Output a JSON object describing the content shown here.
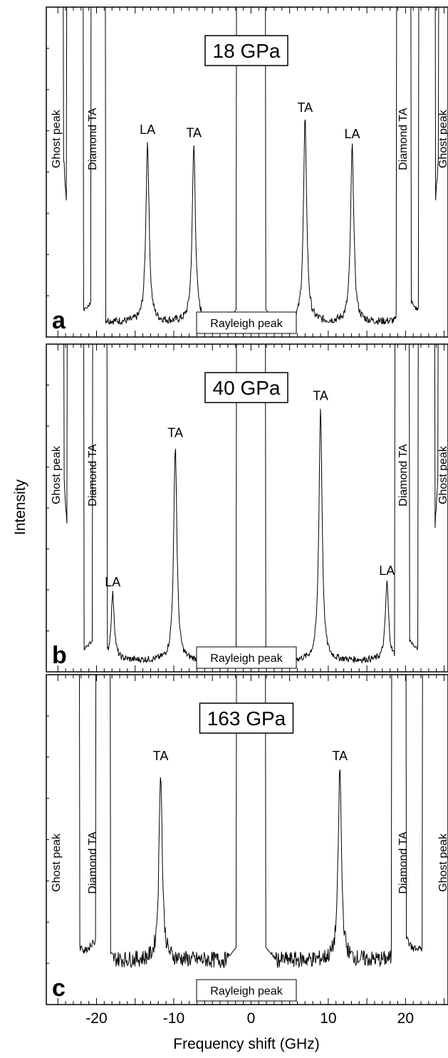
{
  "chart_data": {
    "type": "line",
    "title": "",
    "xlabel": "Frequency shift (GHz)",
    "ylabel": "Intensity",
    "xlim": [
      -26.5,
      25.5
    ],
    "xticks": [
      -20,
      -10,
      0,
      10,
      20
    ],
    "xtick_labels": [
      "-20",
      "-10",
      "0",
      "10",
      "20"
    ],
    "grid": false,
    "panels": [
      {
        "letter": "a",
        "pressure": "18 GPa",
        "rayleigh_label": "Rayleigh peak",
        "ghost_label": "Ghost peak",
        "diamond_label": "Diamond TA",
        "peak_labels": [
          {
            "text": "LA",
            "x": -13.4
          },
          {
            "text": "TA",
            "x": -7.4
          },
          {
            "text": "TA",
            "x": 7.0
          },
          {
            "text": "LA",
            "x": 13.1
          }
        ],
        "peaks": [
          {
            "x": -13.4,
            "h": 0.545
          },
          {
            "x": -7.4,
            "h": 0.535
          },
          {
            "x": 7.0,
            "h": 0.612
          },
          {
            "x": 13.1,
            "h": 0.532
          }
        ],
        "baseline": 0.045,
        "noise": 0.012,
        "diamond_x": 20.4,
        "ghost_x": 23.1
      },
      {
        "letter": "b",
        "pressure": "40 GPa",
        "rayleigh_label": "Rayleigh peak",
        "ghost_label": "Ghost peak",
        "diamond_label": "Diamond TA",
        "peak_labels": [
          {
            "text": "LA",
            "x": -17.9
          },
          {
            "text": "TA",
            "x": -9.8
          },
          {
            "text": "TA",
            "x": 9.0
          },
          {
            "text": "LA",
            "x": 17.6
          }
        ],
        "peaks": [
          {
            "x": -17.9,
            "h": 0.2
          },
          {
            "x": -9.8,
            "h": 0.655
          },
          {
            "x": 9.0,
            "h": 0.768
          },
          {
            "x": 17.6,
            "h": 0.235
          }
        ],
        "baseline": 0.035,
        "noise": 0.01,
        "diamond_x": 20.2,
        "ghost_x": 23.0
      },
      {
        "letter": "c",
        "pressure": "163 GPa",
        "rayleigh_label": "Rayleigh peak",
        "ghost_label": "Ghost peak",
        "diamond_label": "Diamond TA",
        "peak_labels": [
          {
            "text": "TA",
            "x": -11.7
          },
          {
            "text": "TA",
            "x": 11.5
          }
        ],
        "peaks": [
          {
            "x": -11.7,
            "h": 0.58
          },
          {
            "x": 11.5,
            "h": 0.58
          }
        ],
        "baseline": 0.135,
        "noise": 0.025,
        "diamond_x": 19.8,
        "ghost_x": 23.6
      }
    ]
  }
}
